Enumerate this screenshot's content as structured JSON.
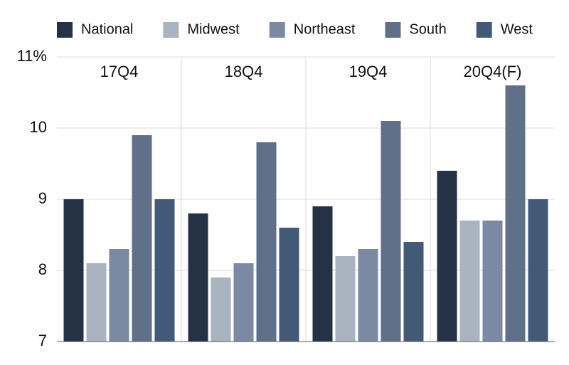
{
  "chart_data": {
    "type": "bar",
    "categories": [
      "17Q4",
      "18Q4",
      "19Q4",
      "20Q4(F)"
    ],
    "series": [
      {
        "name": "National",
        "color": "#253246",
        "values": [
          9.0,
          8.8,
          8.9,
          9.4
        ]
      },
      {
        "name": "Midwest",
        "color": "#a9b4c0",
        "values": [
          8.1,
          7.9,
          8.2,
          8.7
        ]
      },
      {
        "name": "Northeast",
        "color": "#7b89a3",
        "values": [
          8.3,
          8.1,
          8.3,
          8.7
        ]
      },
      {
        "name": "South",
        "color": "#617089",
        "values": [
          9.9,
          9.8,
          10.1,
          10.6
        ]
      },
      {
        "name": "West",
        "color": "#435a77",
        "values": [
          9.0,
          8.6,
          8.4,
          9.0
        ]
      }
    ],
    "ylim": [
      7,
      11
    ],
    "yticks": [
      7,
      8,
      9,
      10,
      {
        "value": 11,
        "label": "11%"
      }
    ],
    "grid": true,
    "legend": "top"
  }
}
